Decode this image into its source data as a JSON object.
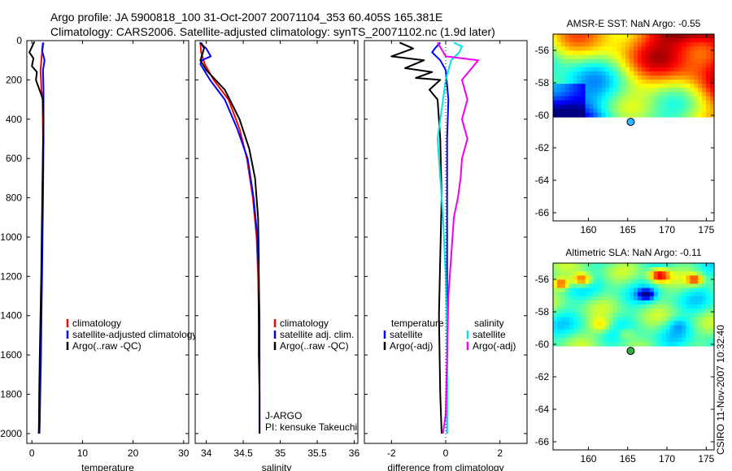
{
  "header": {
    "line1": "Argo profile: JA 5900818_100 31-Oct-2007 20071104_353 60.405S 165.381E",
    "line2": "Climatology: CARS2006. Satellite-adjusted climatology: synTS_20071102.nc (1.9d later)"
  },
  "footer": {
    "stamp": "CSIRO 11-Nov-2007 10:32:40"
  },
  "colors": {
    "climatology": "#ff0000",
    "satellite": "#0000ff",
    "argo": "#000000",
    "sat_cyan": "#00e5e5",
    "argo_magenta": "#ee00ee",
    "map_bg": "#ffffff"
  },
  "chart_data": [
    {
      "type": "line",
      "name": "temperature_profile",
      "xlabel": "temperature",
      "ylabel": "",
      "xlim": [
        -1,
        31
      ],
      "ylim": [
        2050,
        0
      ],
      "xticks": [
        0,
        10,
        20,
        30
      ],
      "yticks": [
        0,
        200,
        400,
        600,
        800,
        1000,
        1200,
        1400,
        1600,
        1800,
        2000
      ],
      "series": [
        {
          "name": "climatology",
          "color": "#ff0000",
          "x": [
            2.3,
            2.0,
            1.7,
            1.9,
            2.1,
            2.2,
            2.1,
            2.0,
            1.9,
            1.8,
            1.7,
            1.55,
            1.45,
            1.4
          ],
          "y": [
            10,
            60,
            150,
            250,
            300,
            500,
            800,
            1000,
            1200,
            1400,
            1600,
            1800,
            1950,
            2000
          ]
        },
        {
          "name": "satellite-adjusted climatology",
          "color": "#0000ff",
          "x": [
            2.2,
            2.0,
            2.5,
            2.2,
            2.3,
            2.3,
            2.2,
            2.1,
            2.0,
            1.9,
            1.8,
            1.65,
            1.55,
            1.5
          ],
          "y": [
            10,
            50,
            100,
            150,
            250,
            500,
            800,
            1000,
            1200,
            1400,
            1600,
            1800,
            1950,
            2000
          ]
        },
        {
          "name": "Argo(..raw -QC)",
          "color": "#000000",
          "x": [
            0.5,
            -0.5,
            0.3,
            0.0,
            1.0,
            0.8,
            1.5,
            2.2,
            2.3,
            2.1,
            1.95,
            1.85,
            1.7,
            1.55,
            1.45,
            1.4,
            1.35
          ],
          "y": [
            5,
            60,
            90,
            130,
            160,
            200,
            250,
            300,
            400,
            700,
            1000,
            1200,
            1400,
            1600,
            1800,
            1950,
            2000
          ]
        }
      ],
      "legend": [
        "climatology",
        "satellite-adjusted climatology",
        "Argo(..raw -QC)"
      ]
    },
    {
      "type": "line",
      "name": "salinity_profile",
      "xlabel": "salinity",
      "ylabel": "",
      "xlim": [
        33.85,
        36.05
      ],
      "ylim": [
        2050,
        0
      ],
      "xticks": [
        34,
        34.5,
        35,
        35.5,
        36
      ],
      "series": [
        {
          "name": "climatology",
          "color": "#ff0000",
          "x": [
            33.92,
            33.93,
            33.98,
            34.1,
            34.3,
            34.45,
            34.55,
            34.63,
            34.68,
            34.7,
            34.71,
            34.72,
            34.72,
            34.72
          ],
          "y": [
            10,
            60,
            120,
            200,
            300,
            450,
            600,
            800,
            1000,
            1200,
            1400,
            1600,
            1800,
            2000
          ]
        },
        {
          "name": "satellite adj. clim.",
          "color": "#0000ff",
          "x": [
            33.91,
            34.0,
            34.06,
            33.94,
            33.92,
            34.05,
            34.25,
            34.42,
            34.56,
            34.64,
            34.69,
            34.71,
            34.72,
            34.72,
            34.72
          ],
          "y": [
            10,
            40,
            80,
            100,
            120,
            200,
            300,
            450,
            600,
            800,
            1000,
            1200,
            1400,
            1600,
            2000
          ]
        },
        {
          "name": "Argo(..raw -QC)",
          "color": "#000000",
          "x": [
            33.93,
            33.97,
            33.92,
            34.0,
            34.25,
            34.45,
            34.58,
            34.66,
            34.7,
            34.71,
            34.71,
            34.71,
            34.72,
            34.72
          ],
          "y": [
            10,
            40,
            100,
            150,
            250,
            400,
            550,
            700,
            900,
            1100,
            1400,
            1600,
            1800,
            2000
          ]
        }
      ],
      "legend": [
        "climatology",
        "satellite adj. clim.",
        "Argo(..raw -QC)"
      ],
      "annotations": [
        "J-ARGO",
        "PI: kensuke Takeuchi"
      ]
    },
    {
      "type": "line",
      "name": "difference_profile",
      "xlabel": "difference from climatology",
      "ylabel": "",
      "xlim": [
        -3,
        3
      ],
      "ylim": [
        2050,
        0
      ],
      "xticks": [
        -2,
        0,
        2
      ],
      "series": [
        {
          "name": "temperature satellite",
          "color": "#0000ff",
          "x": [
            -0.2,
            -0.4,
            -0.5,
            -0.2,
            0.0,
            0.1,
            0.05,
            0.05,
            0.05,
            0.05,
            0.05,
            0.05,
            0.05
          ],
          "y": [
            10,
            40,
            60,
            100,
            150,
            300,
            500,
            800,
            1100,
            1400,
            1700,
            1950,
            2000
          ]
        },
        {
          "name": "temperature Argo(-adj)",
          "color": "#000000",
          "x": [
            -1.7,
            -1.2,
            -2.0,
            -0.8,
            -1.5,
            -0.5,
            -1.1,
            -0.2,
            -0.6,
            -0.3,
            -0.2,
            -0.15,
            -0.2,
            -0.25,
            -0.2,
            -0.15
          ],
          "y": [
            10,
            40,
            80,
            100,
            140,
            160,
            190,
            200,
            250,
            300,
            500,
            800,
            1100,
            1400,
            1800,
            2000
          ]
        },
        {
          "name": "salinity satellite",
          "color": "#00e5e5",
          "x": [
            0.3,
            0.6,
            0.5,
            0.2,
            0.0,
            -0.1,
            -0.3,
            -0.2,
            -0.1,
            0.0,
            0.05,
            0.05,
            0.05
          ],
          "y": [
            10,
            30,
            60,
            100,
            200,
            300,
            500,
            700,
            900,
            1200,
            1500,
            1800,
            2000
          ]
        },
        {
          "name": "salinity Argo(-adj)",
          "color": "#ee00ee",
          "x": [
            -0.3,
            0.0,
            1.2,
            0.6,
            0.8,
            0.6,
            0.8,
            0.6,
            0.55,
            0.45,
            0.3,
            0.2,
            0.1,
            0.05,
            0.0,
            -0.1
          ],
          "y": [
            10,
            80,
            100,
            200,
            300,
            400,
            500,
            600,
            700,
            800,
            900,
            1100,
            1300,
            1600,
            1900,
            2000
          ]
        }
      ],
      "legend_titles": [
        "temperature",
        "salinity"
      ],
      "legend": [
        "satellite",
        "Argo(-adj)",
        "satellite",
        "Argo(-adj)"
      ]
    },
    {
      "type": "heatmap",
      "name": "amsre_sst_map",
      "title": "AMSR-E SST: NaN Argo: -0.55",
      "xlim": [
        155.5,
        176
      ],
      "ylim": [
        -66.5,
        -55
      ],
      "xticks": [
        160,
        165,
        170,
        175
      ],
      "yticks": [
        -56,
        -58,
        -60,
        -62,
        -64,
        -66
      ],
      "data_lat_range": [
        -60.1,
        -55
      ],
      "marker": {
        "lon": 165.381,
        "lat": -60.405,
        "color": "#33b5ff"
      }
    },
    {
      "type": "heatmap",
      "name": "altimetric_sla_map",
      "title": "Altimetric SLA: NaN Argo: -0.11",
      "xlim": [
        155.5,
        176
      ],
      "ylim": [
        -66.5,
        -55
      ],
      "xticks": [
        160,
        165,
        170,
        175
      ],
      "yticks": [
        -56,
        -58,
        -60,
        -62,
        -64,
        -66
      ],
      "data_lat_range": [
        -60.1,
        -55
      ],
      "marker": {
        "lon": 165.381,
        "lat": -60.405,
        "color": "#33aa44"
      }
    }
  ]
}
